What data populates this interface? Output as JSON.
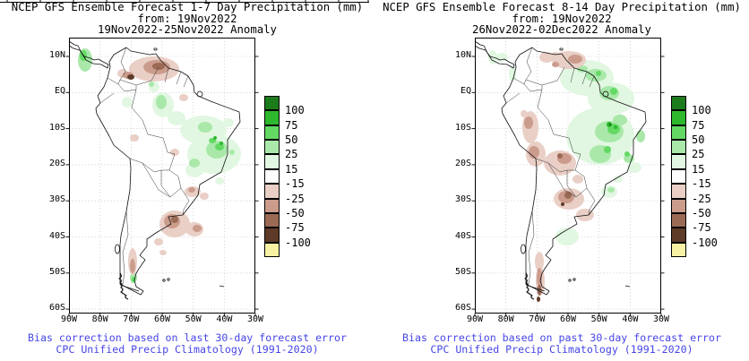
{
  "page": {
    "background": "#ffffff",
    "text_color": "#000000",
    "caption_color": "#4646e8"
  },
  "panels": [
    {
      "title_line1": "NCEP GFS Ensemble Forecast 1-7 Day Precipitation (mm)",
      "title_line2": "from: 19Nov2022",
      "title_line3": "19Nov2022-25Nov2022 Anomaly",
      "lat_ticks": [
        "10N",
        "EQ",
        "10S",
        "20S",
        "30S",
        "40S",
        "50S",
        "60S"
      ],
      "lon_ticks": [
        "90W",
        "80W",
        "70W",
        "60W",
        "50W",
        "40W",
        "30W"
      ],
      "caption_line1": "Bias correction based on last 30-day forecast error",
      "caption_line2": "CPC Unified Precip Climatology (1991-2020)"
    },
    {
      "title_line1": "NCEP GFS Ensemble Forecast 8-14 Day Precipitation (mm)",
      "title_line2": "from: 19Nov2022",
      "title_line3": "26Nov2022-02Dec2022 Anomaly",
      "lat_ticks": [
        "10N",
        "EQ",
        "10S",
        "20S",
        "30S",
        "40S",
        "50S",
        "60S"
      ],
      "lon_ticks": [
        "90W",
        "80W",
        "70W",
        "60W",
        "50W",
        "40W",
        "30W"
      ],
      "caption_line1": "Bias correction based on past 30-day forecast error",
      "caption_line2": "CPC Unified Precip Climatology (1991-2020)"
    }
  ],
  "colorbar": {
    "labels": [
      "100",
      "75",
      "50",
      "25",
      "15",
      "-15",
      "-25",
      "-50",
      "-75",
      "-100"
    ],
    "colors": [
      "#1c7c1c",
      "#2eb82e",
      "#63d963",
      "#a9e8a9",
      "#e1f7e1",
      "#ffffff",
      "#e9cfc6",
      "#cb9c8c",
      "#9a6a55",
      "#5e3a28",
      "#f7f2a3"
    ]
  },
  "chart_data": [
    {
      "type": "heatmap",
      "subtype": "geographic precipitation anomaly map",
      "title": "NCEP GFS Ensemble Forecast 1-7 Day Precipitation (mm)",
      "init_date": "19Nov2022",
      "valid_period": "19Nov2022-25Nov2022",
      "quantity": "Precipitation anomaly (mm)",
      "region": "South America",
      "x_range": [
        "90W",
        "30W"
      ],
      "y_range": [
        "60S",
        "~13N"
      ],
      "grid": "10 degree dotted graticule",
      "legend_position": "right of map",
      "colorbar_levels": [
        100,
        75,
        50,
        25,
        15,
        -15,
        -25,
        -50,
        -75,
        -100
      ],
      "anomaly_features": [
        {
          "area": "northern Colombia / western Venezuela",
          "anomaly_mm": "-25 to -100"
        },
        {
          "area": "southeastern Colombia / upper Amazon",
          "anomaly_mm": "+15 to +50"
        },
        {
          "area": "central and eastern Amazon Brazil",
          "anomaly_mm": "+15 to +75"
        },
        {
          "area": "Central America (Costa Rica/Panama)",
          "anomaly_mm": "+25 to +50"
        },
        {
          "area": "Paraguay / NE Argentina / Uruguay",
          "anomaly_mm": "-25 to -75"
        },
        {
          "area": "south-central Chile coast (38S-46S)",
          "anomaly_mm": "-25 to -50"
        },
        {
          "area": "far southern Chile (~48S)",
          "anomaly_mm": "+25 to +50"
        }
      ]
    },
    {
      "type": "heatmap",
      "subtype": "geographic precipitation anomaly map",
      "title": "NCEP GFS Ensemble Forecast 8-14 Day Precipitation (mm)",
      "init_date": "19Nov2022",
      "valid_period": "26Nov2022-02Dec2022",
      "quantity": "Precipitation anomaly (mm)",
      "region": "South America",
      "x_range": [
        "90W",
        "30W"
      ],
      "y_range": [
        "60S",
        "~13N"
      ],
      "grid": "10 degree dotted graticule",
      "legend_position": "right of map",
      "colorbar_levels": [
        100,
        75,
        50,
        25,
        15,
        -15,
        -25,
        -50,
        -75,
        -100
      ],
      "anomaly_features": [
        {
          "area": "Venezuela (north-central)",
          "anomaly_mm": "-25 to -50"
        },
        {
          "area": "Guianas / far northern Brazil",
          "anomaly_mm": "+15 to +75"
        },
        {
          "area": "east-central Brazil (large area)",
          "anomaly_mm": "+15 to +100"
        },
        {
          "area": "Peruvian Andes / western Bolivia",
          "anomaly_mm": "-25 to -50"
        },
        {
          "area": "Gran Chaco / northern Argentina",
          "anomaly_mm": "-25 to -75"
        },
        {
          "area": "southeastern Brazil",
          "anomaly_mm": "+15 to +25"
        },
        {
          "area": "central Argentina",
          "anomaly_mm": "+15"
        },
        {
          "area": "southern Chile coast (40S-55S)",
          "anomaly_mm": "-25 to -100"
        }
      ]
    }
  ]
}
